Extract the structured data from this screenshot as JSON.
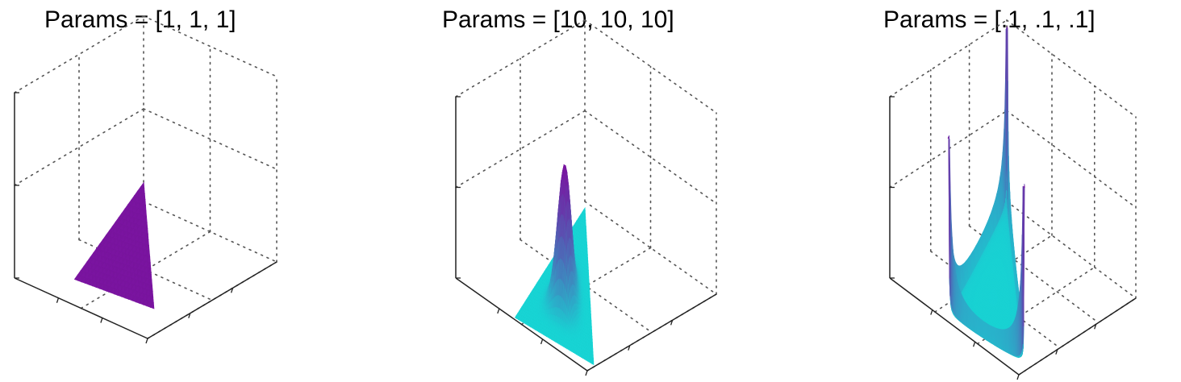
{
  "chart_data": [
    {
      "type": "surface",
      "title": "Params = [1, 1, 1]",
      "distribution": "dirichlet",
      "alpha": [
        1,
        1,
        1
      ],
      "colors": {
        "low": "#18d4d4",
        "high": "#7a14a0"
      }
    },
    {
      "type": "surface",
      "title": "Params = [10, 10, 10]",
      "distribution": "dirichlet",
      "alpha": [
        10,
        10,
        10
      ],
      "colors": {
        "low": "#18d4d4",
        "high": "#7a14a0"
      }
    },
    {
      "type": "surface",
      "title": "Params = [.1, .1, .1]",
      "distribution": "dirichlet",
      "alpha": [
        0.1,
        0.1,
        0.1
      ],
      "colors": {
        "low": "#18d4d4",
        "high": "#7a14a0"
      }
    }
  ]
}
